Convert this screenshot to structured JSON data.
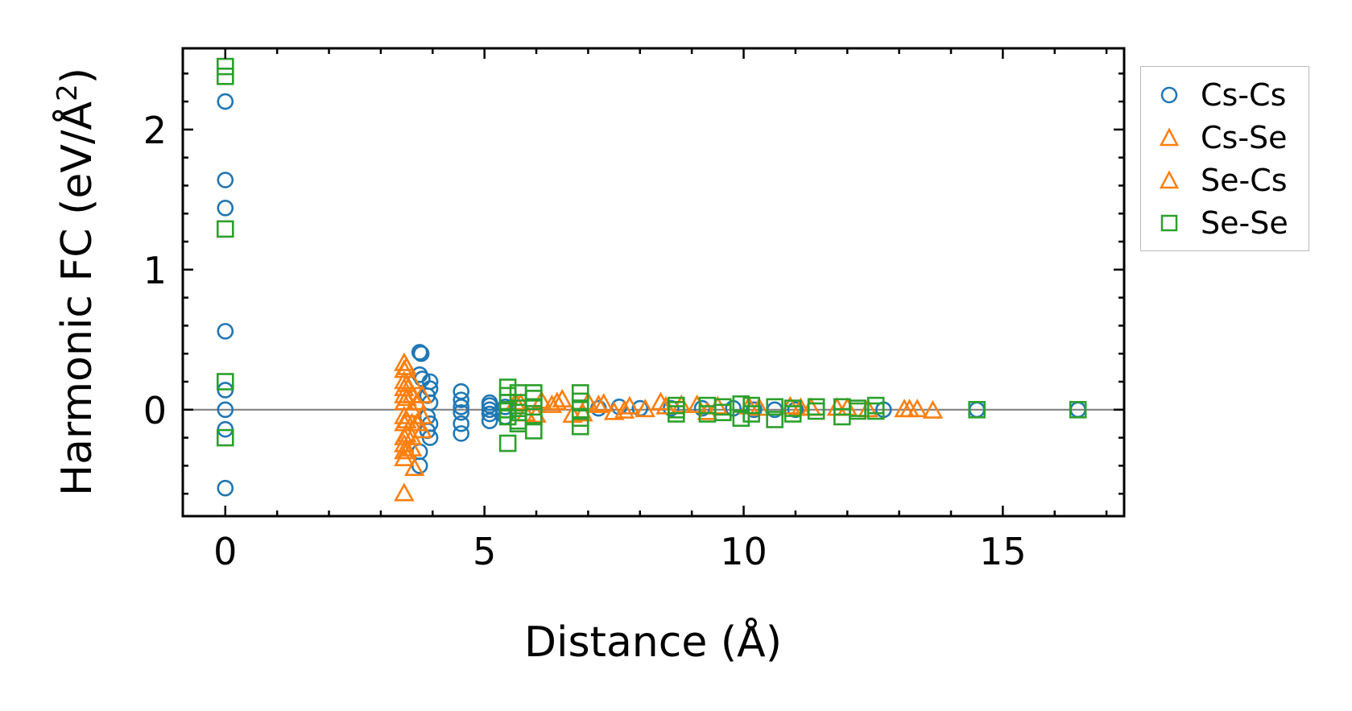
{
  "chart_data": {
    "type": "scatter",
    "title": "",
    "xlabel": "Distance (Å)",
    "ylabel_main": "Harmonic FC (eV/Å",
    "ylabel_sup": "2",
    "ylabel_end": ")",
    "xlim": [
      -0.82,
      17.34
    ],
    "ylim": [
      -0.76,
      2.58
    ],
    "xticks": [
      0,
      5,
      10,
      15
    ],
    "xtick_labels": [
      "0",
      "5",
      "10",
      "15"
    ],
    "yticks": [
      0,
      1,
      2
    ],
    "ytick_labels": [
      "0",
      "1",
      "2"
    ],
    "zero_line": 0,
    "legend_position": "outside-right",
    "series": [
      {
        "name": "Cs-Cs",
        "marker": "circle",
        "color": "#1f77b4",
        "points": [
          [
            0,
            2.2
          ],
          [
            0,
            1.64
          ],
          [
            0,
            1.44
          ],
          [
            0,
            0.56
          ],
          [
            0,
            0.14
          ],
          [
            0,
            0
          ],
          [
            0,
            -0.14
          ],
          [
            0,
            -0.56
          ],
          [
            3.75,
            0.41
          ],
          [
            3.78,
            0.4
          ],
          [
            3.75,
            0.25
          ],
          [
            3.8,
            0.22
          ],
          [
            3.95,
            0.2
          ],
          [
            3.95,
            0.15
          ],
          [
            3.9,
            0.1
          ],
          [
            3.95,
            0.05
          ],
          [
            3.9,
            -0.05
          ],
          [
            3.95,
            -0.1
          ],
          [
            3.9,
            -0.15
          ],
          [
            3.95,
            -0.2
          ],
          [
            3.75,
            -0.3
          ],
          [
            3.75,
            -0.4
          ],
          [
            4.55,
            0.13
          ],
          [
            4.55,
            0.07
          ],
          [
            4.55,
            0.02
          ],
          [
            4.55,
            -0.02
          ],
          [
            4.55,
            -0.1
          ],
          [
            4.55,
            -0.17
          ],
          [
            5.1,
            0.05
          ],
          [
            5.1,
            0.03
          ],
          [
            5.1,
            0
          ],
          [
            5.1,
            -0.03
          ],
          [
            5.1,
            -0.08
          ],
          [
            5.4,
            0.02
          ],
          [
            5.4,
            -0.05
          ],
          [
            7.2,
            0.01
          ],
          [
            7.6,
            0.02
          ],
          [
            8.0,
            0.01
          ],
          [
            8.6,
            0.01
          ],
          [
            9.2,
            0.01
          ],
          [
            9.8,
            0.01
          ],
          [
            10.2,
            0
          ],
          [
            10.6,
            0
          ],
          [
            11.0,
            0
          ],
          [
            12.7,
            0
          ],
          [
            14.5,
            0
          ],
          [
            16.45,
            0
          ]
        ]
      },
      {
        "name": "Cs-Se",
        "marker": "triangle",
        "color": "#ff7f0e",
        "points": [
          [
            3.45,
            0.33
          ],
          [
            3.45,
            0.28
          ],
          [
            3.45,
            0.2
          ],
          [
            3.45,
            0.15
          ],
          [
            3.45,
            0.1
          ],
          [
            3.45,
            0.05
          ],
          [
            3.45,
            -0.05
          ],
          [
            3.45,
            -0.1
          ],
          [
            3.45,
            -0.2
          ],
          [
            3.45,
            -0.25
          ],
          [
            3.45,
            -0.3
          ],
          [
            3.45,
            -0.35
          ],
          [
            3.45,
            -0.6
          ],
          [
            3.6,
            0.2
          ],
          [
            3.6,
            0.1
          ],
          [
            3.6,
            0
          ],
          [
            3.6,
            -0.1
          ],
          [
            3.6,
            -0.2
          ],
          [
            3.6,
            -0.28
          ],
          [
            3.65,
            -0.42
          ],
          [
            3.8,
            0.1
          ],
          [
            3.8,
            -0.05
          ],
          [
            3.8,
            -0.15
          ],
          [
            5.6,
            0.05
          ],
          [
            5.8,
            -0.03
          ],
          [
            6.1,
            0.06
          ],
          [
            6.3,
            0.03
          ],
          [
            6.5,
            0.07
          ],
          [
            6.7,
            -0.04
          ],
          [
            7.0,
            0.05
          ],
          [
            7.2,
            0.03
          ],
          [
            7.5,
            -0.02
          ],
          [
            7.8,
            0.02
          ],
          [
            8.1,
            0
          ],
          [
            8.4,
            0.05
          ],
          [
            8.8,
            0.03
          ],
          [
            9.1,
            0.03
          ],
          [
            9.5,
            0.02
          ],
          [
            10.3,
            0.01
          ],
          [
            10.9,
            0.02
          ],
          [
            11.3,
            0.01
          ],
          [
            11.8,
            0.01
          ],
          [
            12.4,
            0
          ],
          [
            13.1,
            0
          ],
          [
            13.35,
            0
          ],
          [
            13.65,
            -0.01
          ]
        ]
      },
      {
        "name": "Se-Cs",
        "marker": "triangle",
        "color": "#ff7f0e",
        "points": [
          [
            3.5,
            0.3
          ],
          [
            3.5,
            0.18
          ],
          [
            3.5,
            0.08
          ],
          [
            3.5,
            -0.08
          ],
          [
            3.5,
            -0.18
          ],
          [
            3.5,
            -0.3
          ],
          [
            3.7,
            0.05
          ],
          [
            3.7,
            -0.1
          ],
          [
            5.7,
            0.04
          ],
          [
            6.0,
            -0.04
          ],
          [
            6.4,
            0.05
          ],
          [
            6.9,
            -0.03
          ],
          [
            7.3,
            0.04
          ],
          [
            7.7,
            -0.01
          ],
          [
            8.5,
            0.02
          ],
          [
            9.3,
            -0.02
          ],
          [
            10.1,
            0.02
          ],
          [
            11.1,
            0.01
          ],
          [
            12.0,
            0.01
          ],
          [
            13.2,
            0
          ]
        ]
      },
      {
        "name": "Se-Se",
        "marker": "square",
        "color": "#2ca02c",
        "points": [
          [
            0,
            2.45
          ],
          [
            0,
            2.38
          ],
          [
            0,
            1.29
          ],
          [
            0,
            0.2
          ],
          [
            0,
            -0.2
          ],
          [
            5.45,
            0.16
          ],
          [
            5.45,
            0.1
          ],
          [
            5.45,
            0.05
          ],
          [
            5.45,
            0
          ],
          [
            5.45,
            -0.05
          ],
          [
            5.45,
            -0.24
          ],
          [
            5.65,
            0.12
          ],
          [
            5.65,
            0.05
          ],
          [
            5.65,
            -0.02
          ],
          [
            5.65,
            -0.08
          ],
          [
            5.65,
            -0.1
          ],
          [
            5.95,
            0.12
          ],
          [
            5.95,
            0.08
          ],
          [
            5.95,
            0.02
          ],
          [
            5.95,
            -0.05
          ],
          [
            5.95,
            -0.15
          ],
          [
            6.85,
            0.12
          ],
          [
            6.85,
            0.06
          ],
          [
            6.85,
            0
          ],
          [
            6.85,
            -0.06
          ],
          [
            6.85,
            -0.12
          ],
          [
            8.7,
            0.03
          ],
          [
            8.7,
            0
          ],
          [
            8.7,
            -0.03
          ],
          [
            9.3,
            0.03
          ],
          [
            9.3,
            -0.03
          ],
          [
            9.6,
            0.02
          ],
          [
            9.6,
            -0.02
          ],
          [
            9.95,
            0.04
          ],
          [
            9.95,
            -0.06
          ],
          [
            10.15,
            0.03
          ],
          [
            10.15,
            -0.03
          ],
          [
            10.6,
            0.02
          ],
          [
            10.6,
            -0.07
          ],
          [
            10.95,
            0.01
          ],
          [
            10.95,
            -0.03
          ],
          [
            11.4,
            0.02
          ],
          [
            11.4,
            -0.01
          ],
          [
            11.9,
            0.02
          ],
          [
            11.9,
            -0.05
          ],
          [
            12.2,
            0.01
          ],
          [
            12.2,
            -0.01
          ],
          [
            12.55,
            0.03
          ],
          [
            12.55,
            -0.01
          ],
          [
            14.5,
            0
          ],
          [
            16.45,
            0
          ]
        ]
      }
    ]
  },
  "legend": {
    "items": [
      {
        "label": "Cs-Cs"
      },
      {
        "label": "Cs-Se"
      },
      {
        "label": "Se-Cs"
      },
      {
        "label": "Se-Se"
      }
    ]
  }
}
